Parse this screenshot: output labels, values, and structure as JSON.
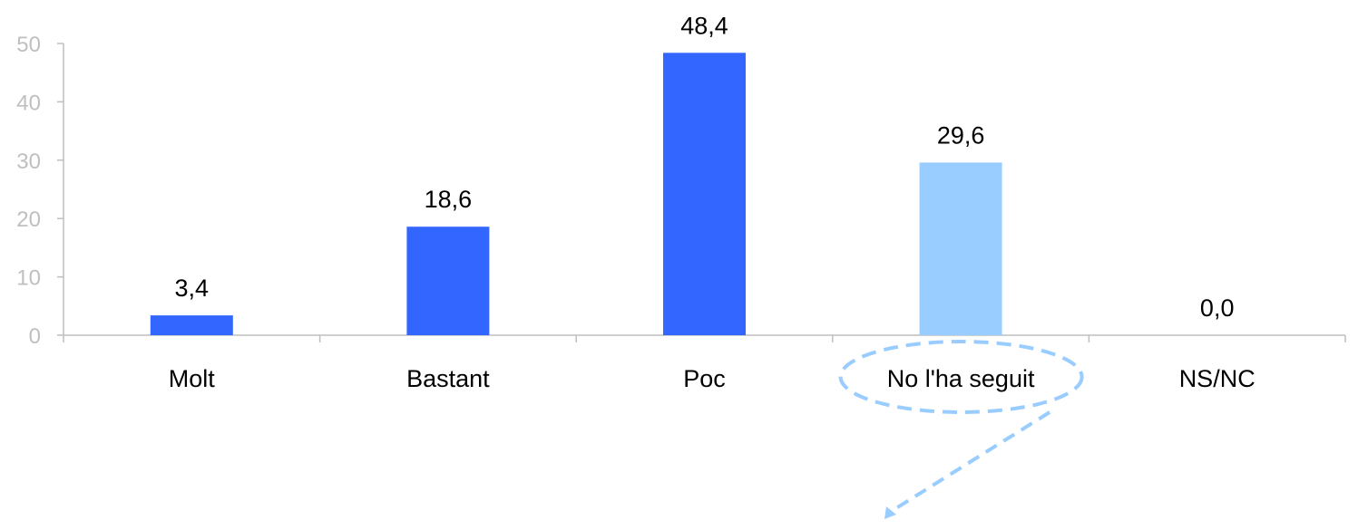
{
  "chart_data": {
    "type": "bar",
    "categories": [
      "Molt",
      "Bastant",
      "Poc",
      "No l'ha seguit",
      "NS/NC"
    ],
    "values": [
      3.4,
      18.6,
      48.4,
      29.6,
      0.0
    ],
    "data_labels": [
      "3,4",
      "18,6",
      "48,4",
      "29,6",
      "0,0"
    ],
    "yticks": [
      "0",
      "10",
      "20",
      "30",
      "40",
      "50"
    ],
    "ytick_values": [
      0,
      10,
      20,
      30,
      40,
      50
    ],
    "ylim": [
      0,
      50
    ],
    "title": "",
    "xlabel": "",
    "ylabel": "",
    "grid": false,
    "legend": "none",
    "highlighted_category": "No l'ha seguit",
    "colors": {
      "bar": "#3366ff",
      "highlight_bar": "#99ccff",
      "annotation": "#99ccff",
      "axis": "#bfbfbf",
      "tick_text": "#bfbfbf",
      "label_text": "#000000"
    }
  }
}
